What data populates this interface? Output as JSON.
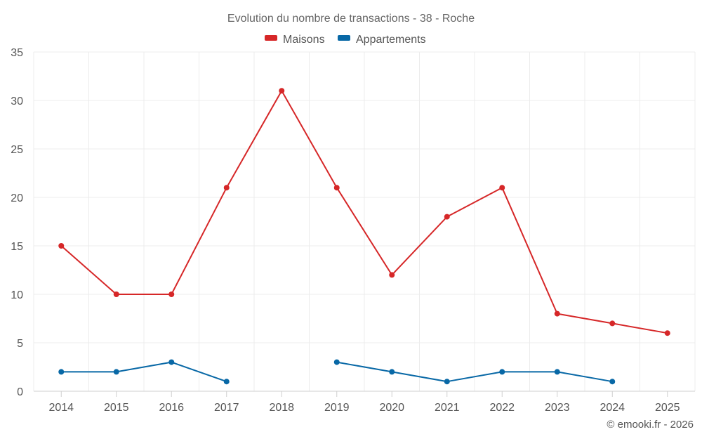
{
  "chart_data": {
    "type": "line",
    "title": "Evolution du nombre de transactions - 38 - Roche",
    "categories": [
      "2014",
      "2015",
      "2016",
      "2017",
      "2018",
      "2019",
      "2020",
      "2021",
      "2022",
      "2023",
      "2024",
      "2025"
    ],
    "ylim": [
      0,
      35
    ],
    "yticks": [
      0,
      5,
      10,
      15,
      20,
      25,
      30,
      35
    ],
    "grid": true,
    "legend_position": "top-center",
    "series": [
      {
        "name": "Maisons",
        "color": "#d62728",
        "values": [
          15,
          10,
          10,
          21,
          31,
          21,
          12,
          18,
          21,
          8,
          7,
          6
        ]
      },
      {
        "name": "Appartements",
        "color": "#0868a6",
        "values": [
          2,
          2,
          3,
          1,
          null,
          3,
          2,
          1,
          2,
          2,
          1,
          null
        ]
      }
    ]
  },
  "credit": "© emooki.fr - 2026"
}
